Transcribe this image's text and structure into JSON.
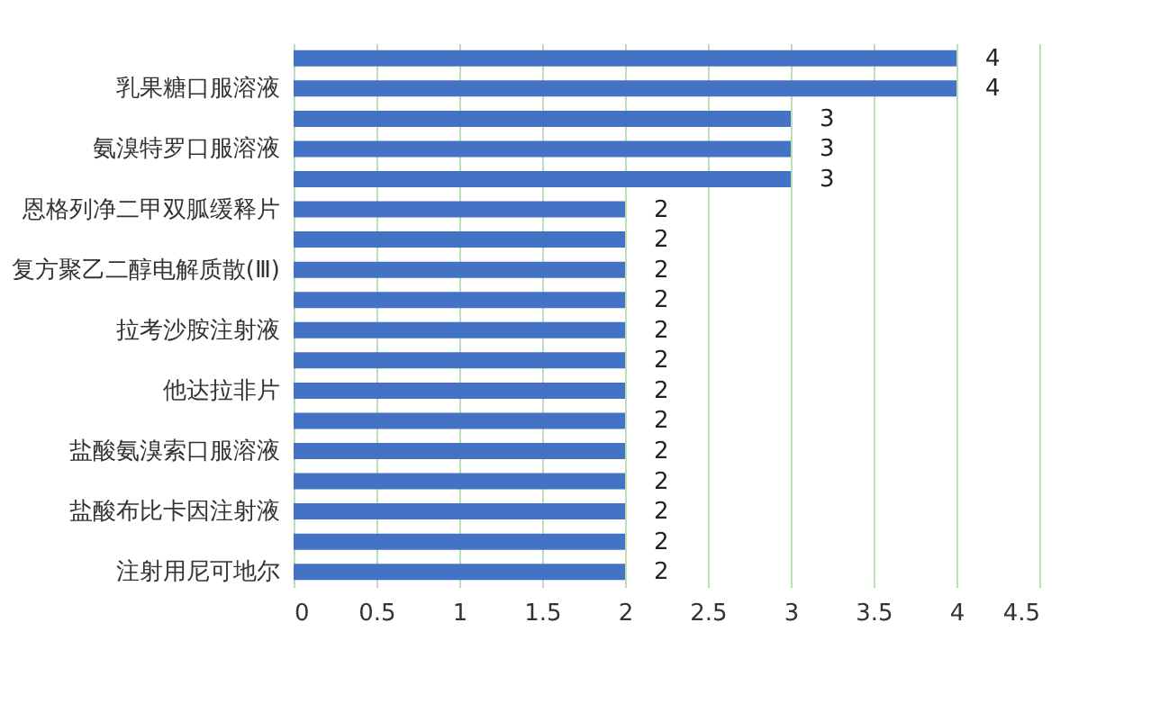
{
  "chart_data": {
    "type": "bar",
    "orientation": "horizontal",
    "categories": [
      null,
      "乳果糖口服溶液",
      null,
      "氨溴特罗口服溶液",
      null,
      "恩格列净二甲双胍缓释片",
      null,
      "复方聚乙二醇电解质散(Ⅲ)",
      null,
      "拉考沙胺注射液",
      null,
      "他达拉非片",
      null,
      "盐酸氨溴索口服溶液",
      null,
      "盐酸布比卡因注射液",
      null,
      "注射用尼可地尔"
    ],
    "values": [
      4,
      4,
      3,
      3,
      3,
      2,
      2,
      2,
      2,
      2,
      2,
      2,
      2,
      2,
      2,
      2,
      2,
      2
    ],
    "color": "#4472c4",
    "xlim": [
      0,
      4.5
    ],
    "xticks": [
      0,
      0.5,
      1,
      1.5,
      2,
      2.5,
      3,
      3.5,
      4,
      4.5
    ],
    "grid": "x",
    "data_labels": true
  }
}
